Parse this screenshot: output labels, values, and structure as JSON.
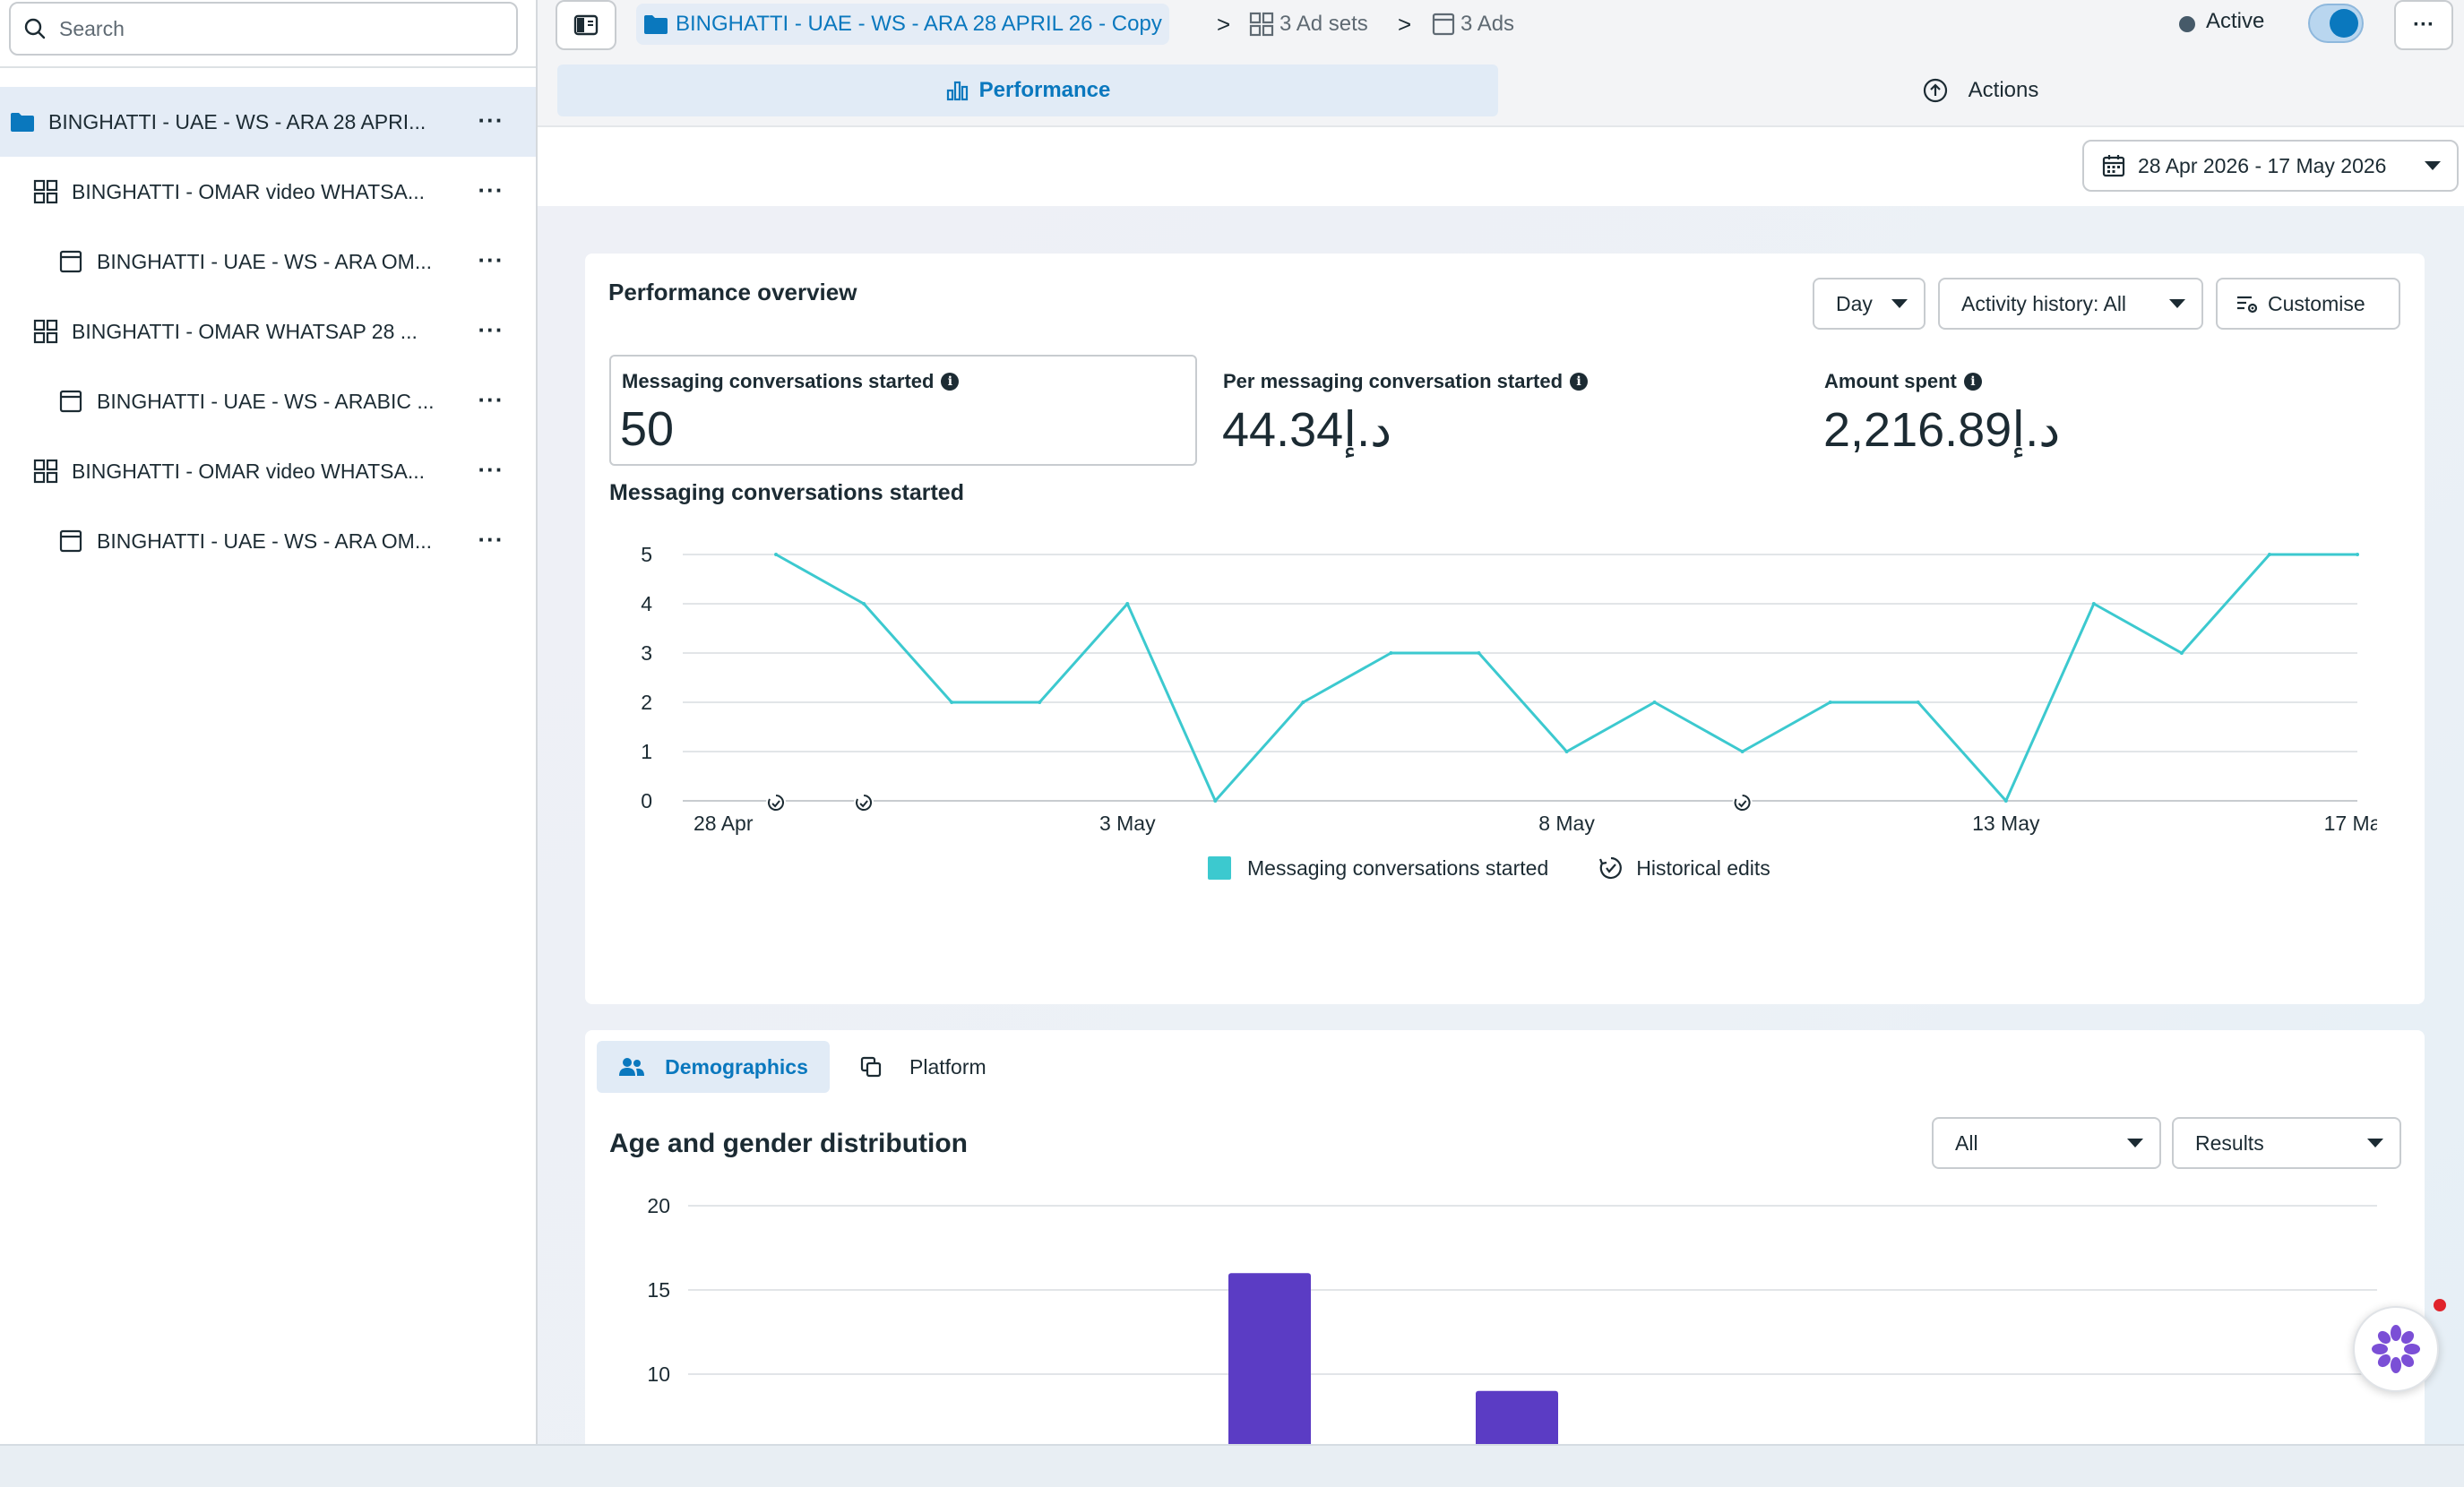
{
  "search": {
    "placeholder": "Search"
  },
  "tree": [
    {
      "label": "BINGHATTI - UAE - WS - ARA 28 APRI...",
      "type": "campaign",
      "more": "···"
    },
    {
      "label": "BINGHATTI - OMAR video WHATSA...",
      "type": "adset",
      "more": "···"
    },
    {
      "label": "BINGHATTI - UAE - WS - ARA OM...",
      "type": "ad",
      "more": "···"
    },
    {
      "label": "BINGHATTI - OMAR WHATSAP 28 ...",
      "type": "adset",
      "more": "···"
    },
    {
      "label": "BINGHATTI - UAE - WS - ARABIC ...",
      "type": "ad",
      "more": "···"
    },
    {
      "label": "BINGHATTI - OMAR video WHATSA...",
      "type": "adset",
      "more": "···"
    },
    {
      "label": "BINGHATTI - UAE - WS - ARA OM...",
      "type": "ad",
      "more": "···"
    }
  ],
  "breadcrumb": {
    "campaign": "BINGHATTI - UAE - WS - ARA 28 APRIL 26 - Copy",
    "adsets": "3 Ad sets",
    "ads": "3 Ads",
    "separator": ">"
  },
  "status": {
    "label": "Active",
    "on": true
  },
  "more_label": "···",
  "tabs": {
    "performance": "Performance",
    "actions": "Actions"
  },
  "date_range": "28 Apr 2026 - 17 May 2026",
  "performance": {
    "title": "Performance overview",
    "granularity": "Day",
    "activity_filter": "Activity history: All",
    "customise": "Customise",
    "info_glyph": "i",
    "metrics": [
      {
        "label": "Messaging conversations started",
        "value": "50"
      },
      {
        "label": "Per messaging conversation started",
        "value": "44.34د.إ"
      },
      {
        "label": "Amount spent",
        "value": "2,216.89د.إ"
      }
    ]
  },
  "chart_data": {
    "type": "line",
    "title": "Messaging conversations started",
    "x": [
      "28 Apr",
      "29 Apr",
      "30 Apr",
      "1 May",
      "2 May",
      "3 May",
      "4 May",
      "5 May",
      "6 May",
      "7 May",
      "8 May",
      "9 May",
      "10 May",
      "11 May",
      "12 May",
      "13 May",
      "14 May",
      "15 May",
      "16 May",
      "17 May"
    ],
    "x_tick_labels": [
      "28 Apr",
      "3 May",
      "8 May",
      "13 May",
      "17 May"
    ],
    "series": [
      {
        "name": "Messaging conversations started",
        "values": [
          null,
          5,
          4,
          2,
          2,
          4,
          0,
          2,
          3,
          3,
          1,
          2,
          1,
          2,
          2,
          0,
          4,
          3,
          5,
          5
        ],
        "color": "#3cc9cf"
      }
    ],
    "y_ticks": [
      0,
      1,
      2,
      3,
      4,
      5
    ],
    "ylim": [
      0,
      5
    ],
    "grid": true,
    "historical_edits_on": [
      "29 Apr",
      "30 Apr",
      "10 May"
    ],
    "legend": {
      "series_label": "Messaging conversations started",
      "edits_label": "Historical edits",
      "position": "bottom"
    }
  },
  "demographics": {
    "tab_demographics": "Demographics",
    "tab_platform": "Platform",
    "title": "Age and gender distribution",
    "filter_all": "All",
    "filter_results": "Results",
    "y_ticks": [
      20,
      15,
      10
    ],
    "ylim": [
      0,
      20
    ],
    "bars": [
      16,
      9
    ],
    "bar_color": "#5b3cc4"
  }
}
